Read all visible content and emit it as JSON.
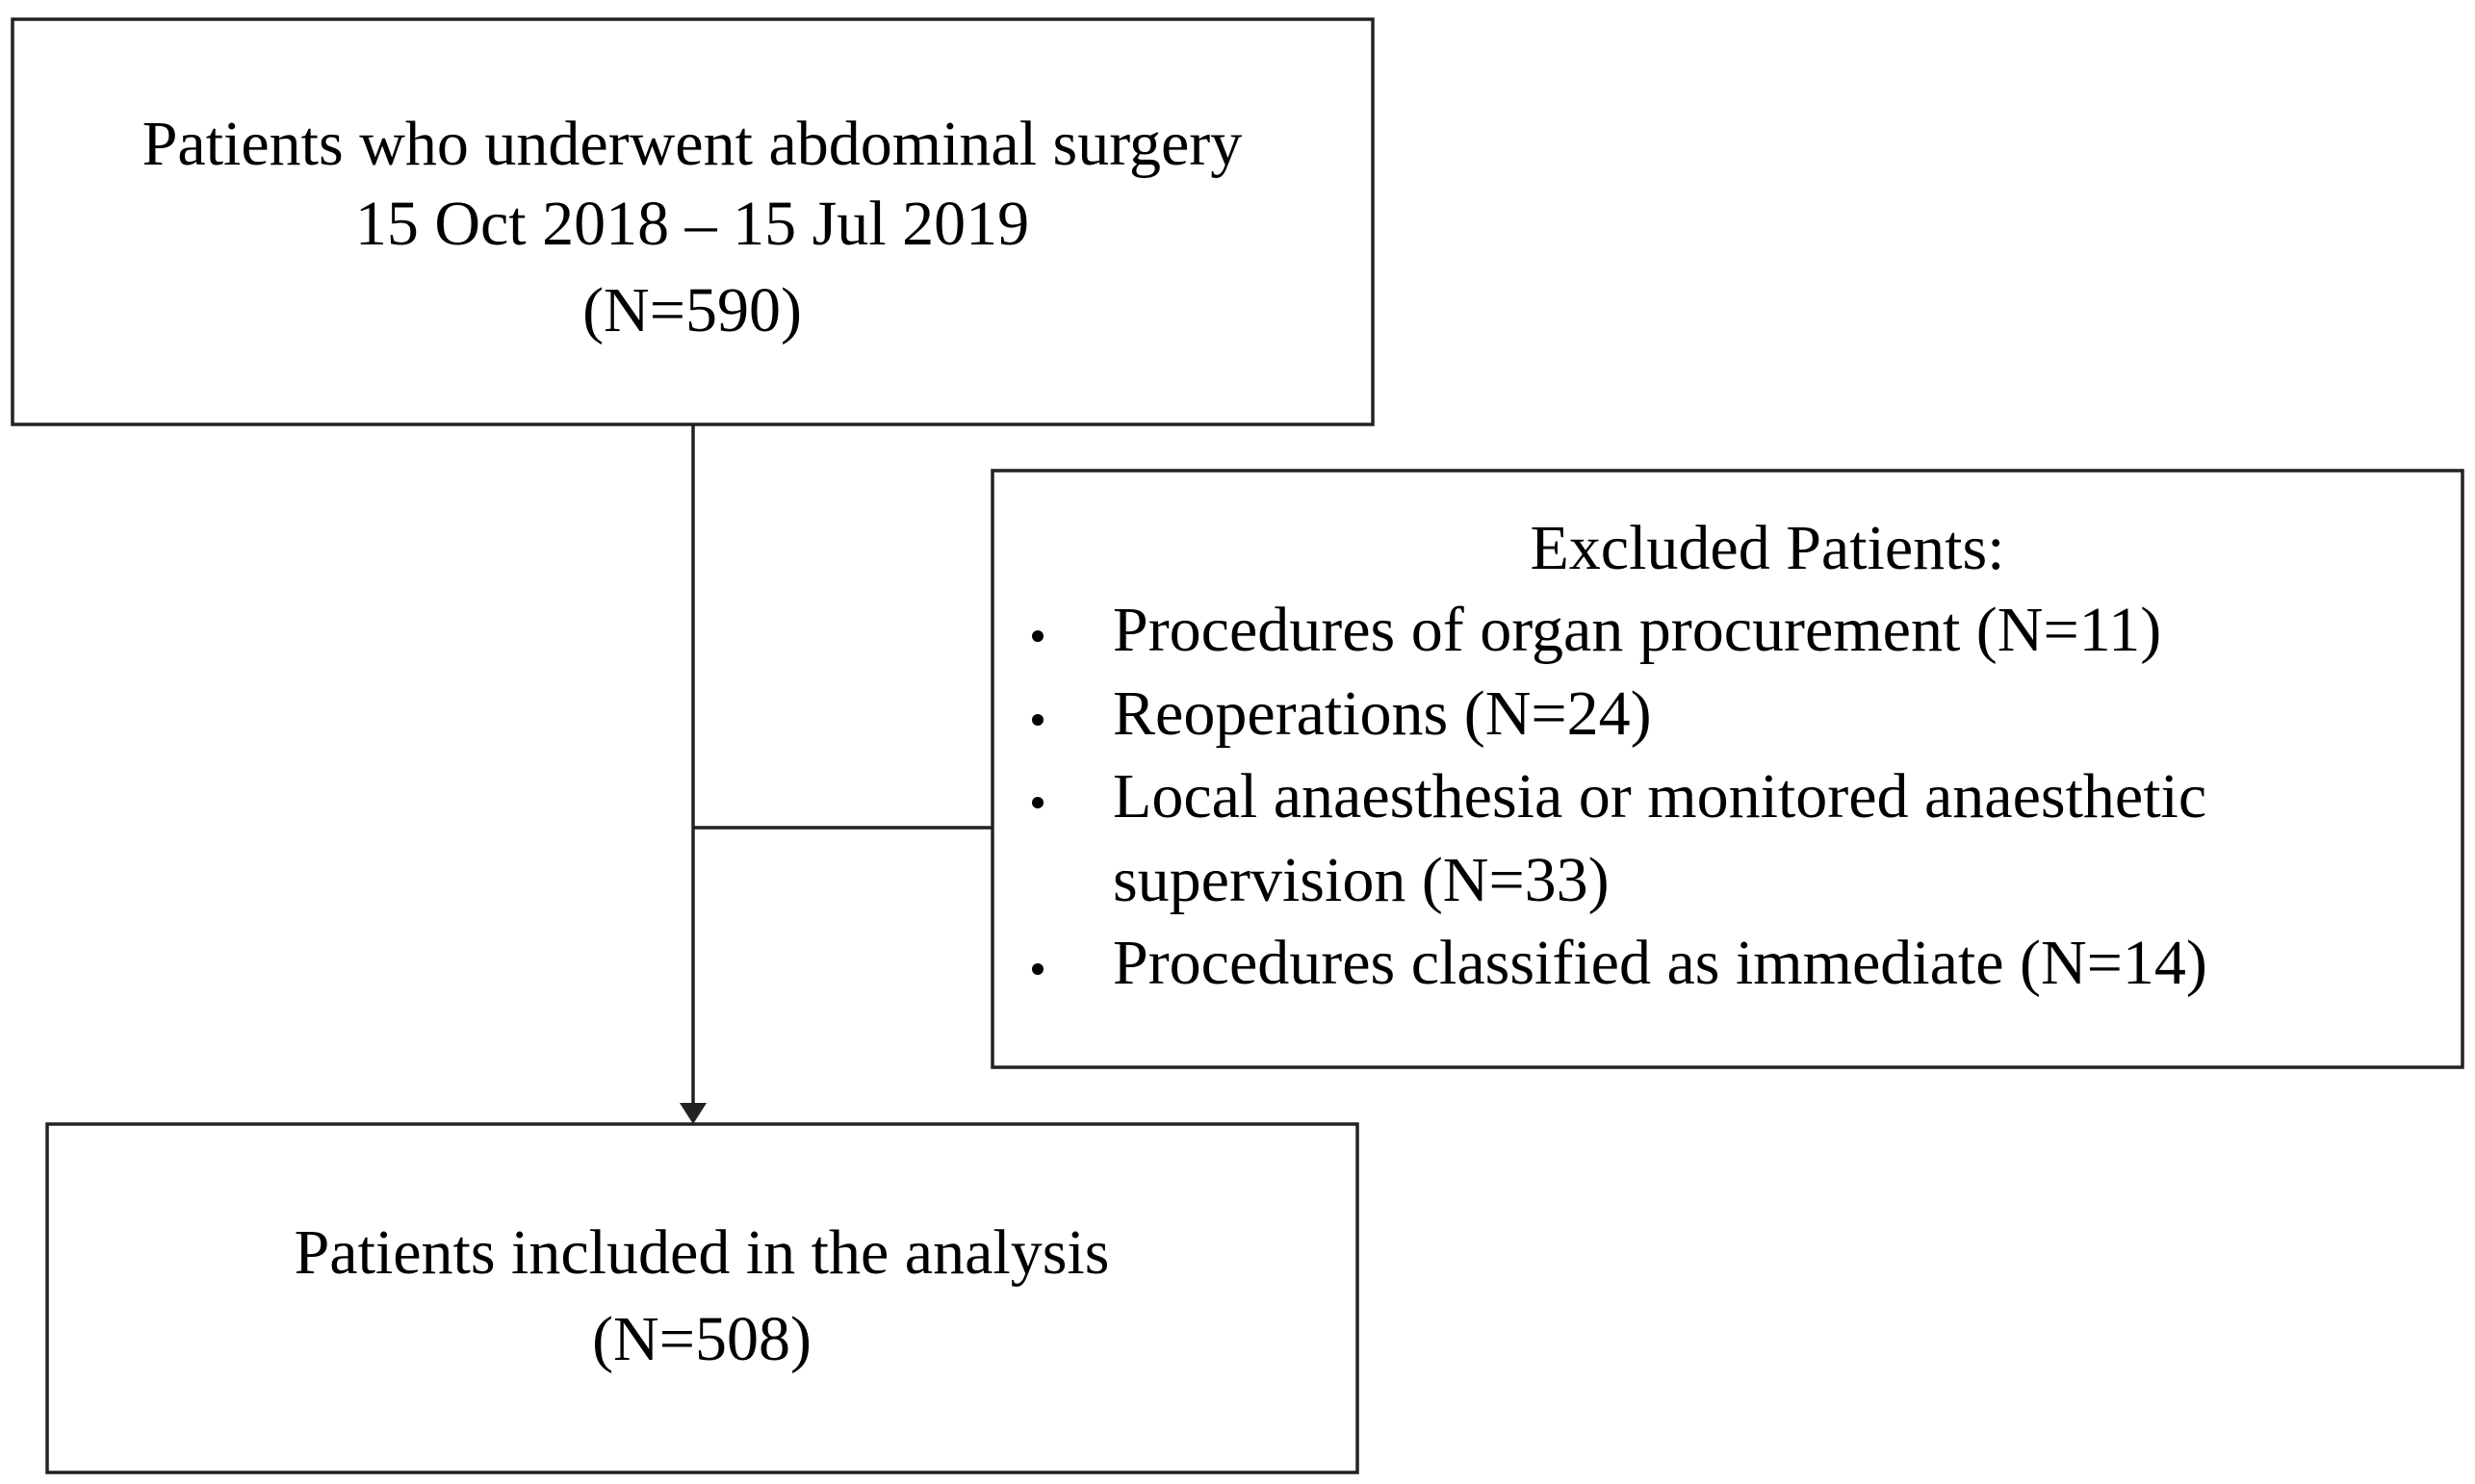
{
  "nodes": [
    {
      "lines": [
        "Patients who underwent abdominal surgery",
        "15 Oct 2018 – 15 Jul 2019",
        "(N=590)"
      ]
    },
    {
      "title": "Excluded Patients:",
      "items": [
        {
          "lines": [
            "Procedures of organ procurement (N=11)"
          ]
        },
        {
          "lines": [
            "Reoperations (N=24)"
          ]
        },
        {
          "lines": [
            "Local anaesthesia or monitored anaesthetic",
            "supervision (N=33)"
          ]
        },
        {
          "lines": [
            "Procedures classified as immediate (N=14)"
          ]
        }
      ]
    },
    {
      "lines": [
        "Patients included in the analysis",
        "(N=508)"
      ]
    }
  ]
}
